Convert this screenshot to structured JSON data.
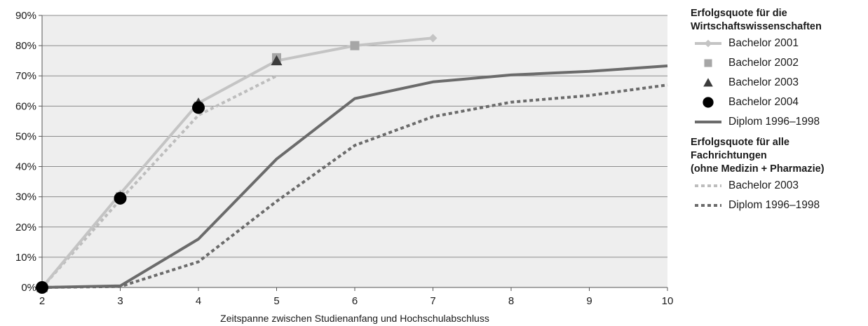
{
  "chart_data": {
    "type": "line",
    "xlabel": "Zeitspanne zwischen Studienanfang und Hochschulabschluss",
    "ylabel": "",
    "xlim": [
      2,
      10
    ],
    "ylim": [
      0,
      90
    ],
    "x_ticks": [
      "2",
      "3",
      "4",
      "5",
      "6",
      "7",
      "8",
      "9",
      "10"
    ],
    "y_ticks": [
      "0%",
      "10%",
      "20%",
      "30%",
      "40%",
      "50%",
      "60%",
      "70%",
      "80%",
      "90%"
    ],
    "grid": true,
    "legend_position": "right",
    "series": [
      {
        "name": "Bachelor 2001",
        "group": 0,
        "style": "line-diamond",
        "color": "#c4c4c4",
        "x": [
          2,
          3,
          4,
          5,
          6,
          7
        ],
        "y": [
          0,
          31,
          61,
          75,
          80,
          82.5
        ]
      },
      {
        "name": "Bachelor 2002",
        "group": 0,
        "style": "marker-square",
        "color": "#a6a6a6",
        "x": [
          2,
          3,
          4,
          5,
          6
        ],
        "y": [
          0,
          30,
          60,
          76,
          80
        ]
      },
      {
        "name": "Bachelor 2003",
        "group": 0,
        "style": "marker-triangle",
        "color": "#3c3c3c",
        "x": [
          2,
          3,
          4,
          5
        ],
        "y": [
          0,
          30,
          61,
          75
        ]
      },
      {
        "name": "Bachelor 2004",
        "group": 0,
        "style": "marker-circle",
        "color": "#000000",
        "x": [
          2,
          3,
          4
        ],
        "y": [
          0,
          29.5,
          59.5
        ]
      },
      {
        "name": "Diplom 1996–1998",
        "group": 0,
        "style": "solid",
        "color": "#6b6b6b",
        "x": [
          2,
          3,
          4,
          5,
          6,
          7,
          8,
          9,
          10
        ],
        "y": [
          0,
          0.5,
          16,
          42.5,
          62.5,
          68,
          70.3,
          71.5,
          73.3
        ]
      },
      {
        "name": "Bachelor 2003",
        "group": 1,
        "style": "dotted",
        "color": "#bdbdbd",
        "x": [
          2,
          3,
          4,
          5
        ],
        "y": [
          0,
          29,
          57,
          70
        ]
      },
      {
        "name": "Diplom 1996–1998",
        "group": 1,
        "style": "dotted",
        "color": "#6b6b6b",
        "x": [
          2,
          3,
          4,
          5,
          6,
          7,
          8,
          9,
          10
        ],
        "y": [
          0,
          0.3,
          8.5,
          28.5,
          47,
          56.5,
          61.3,
          63.5,
          67
        ]
      }
    ]
  },
  "legend": {
    "groups": [
      {
        "title_lines": [
          "Erfolgsquote für die",
          "Wirtschaftswissenschaften"
        ]
      },
      {
        "title_lines": [
          "Erfolgsquote für alle",
          "Fachrichtungen",
          "(ohne Medizin + Pharmazie)"
        ]
      }
    ]
  }
}
